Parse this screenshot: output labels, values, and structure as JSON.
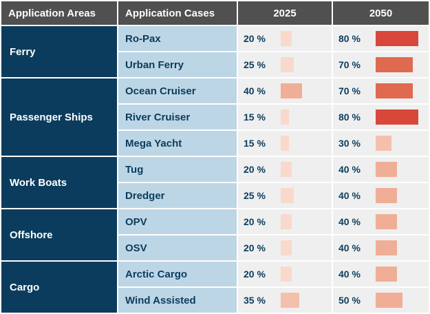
{
  "chart_data": {
    "type": "table",
    "headers": [
      "Application Areas",
      "Application Cases",
      "2025",
      "2050"
    ],
    "groups": [
      {
        "area": "Ferry",
        "cases": [
          {
            "name": "Ro-Pax",
            "v2025": 20,
            "v2050": 80
          },
          {
            "name": "Urban Ferry",
            "v2025": 25,
            "v2050": 70
          }
        ]
      },
      {
        "area": "Passenger Ships",
        "cases": [
          {
            "name": "Ocean Cruiser",
            "v2025": 40,
            "v2050": 70
          },
          {
            "name": "River Cruiser",
            "v2025": 15,
            "v2050": 80
          },
          {
            "name": "Mega Yacht",
            "v2025": 15,
            "v2050": 30
          }
        ]
      },
      {
        "area": "Work Boats",
        "cases": [
          {
            "name": "Tug",
            "v2025": 20,
            "v2050": 40
          },
          {
            "name": "Dredger",
            "v2025": 25,
            "v2050": 40
          }
        ]
      },
      {
        "area": "Offshore",
        "cases": [
          {
            "name": "OPV",
            "v2025": 20,
            "v2050": 40
          },
          {
            "name": "OSV",
            "v2025": 20,
            "v2050": 40
          }
        ]
      },
      {
        "area": "Cargo",
        "cases": [
          {
            "name": "Arctic Cargo",
            "v2025": 20,
            "v2050": 40
          },
          {
            "name": "Wind Assisted",
            "v2025": 35,
            "v2050": 50
          }
        ]
      }
    ],
    "unit": "%",
    "value_range": [
      0,
      80
    ]
  },
  "colors": {
    "header_bg": "#505050",
    "area_bg": "#0b3c5d",
    "case_bg": "#bdd6e6",
    "cell_bg": "#efefef",
    "text_dark": "#0b3c5d"
  }
}
